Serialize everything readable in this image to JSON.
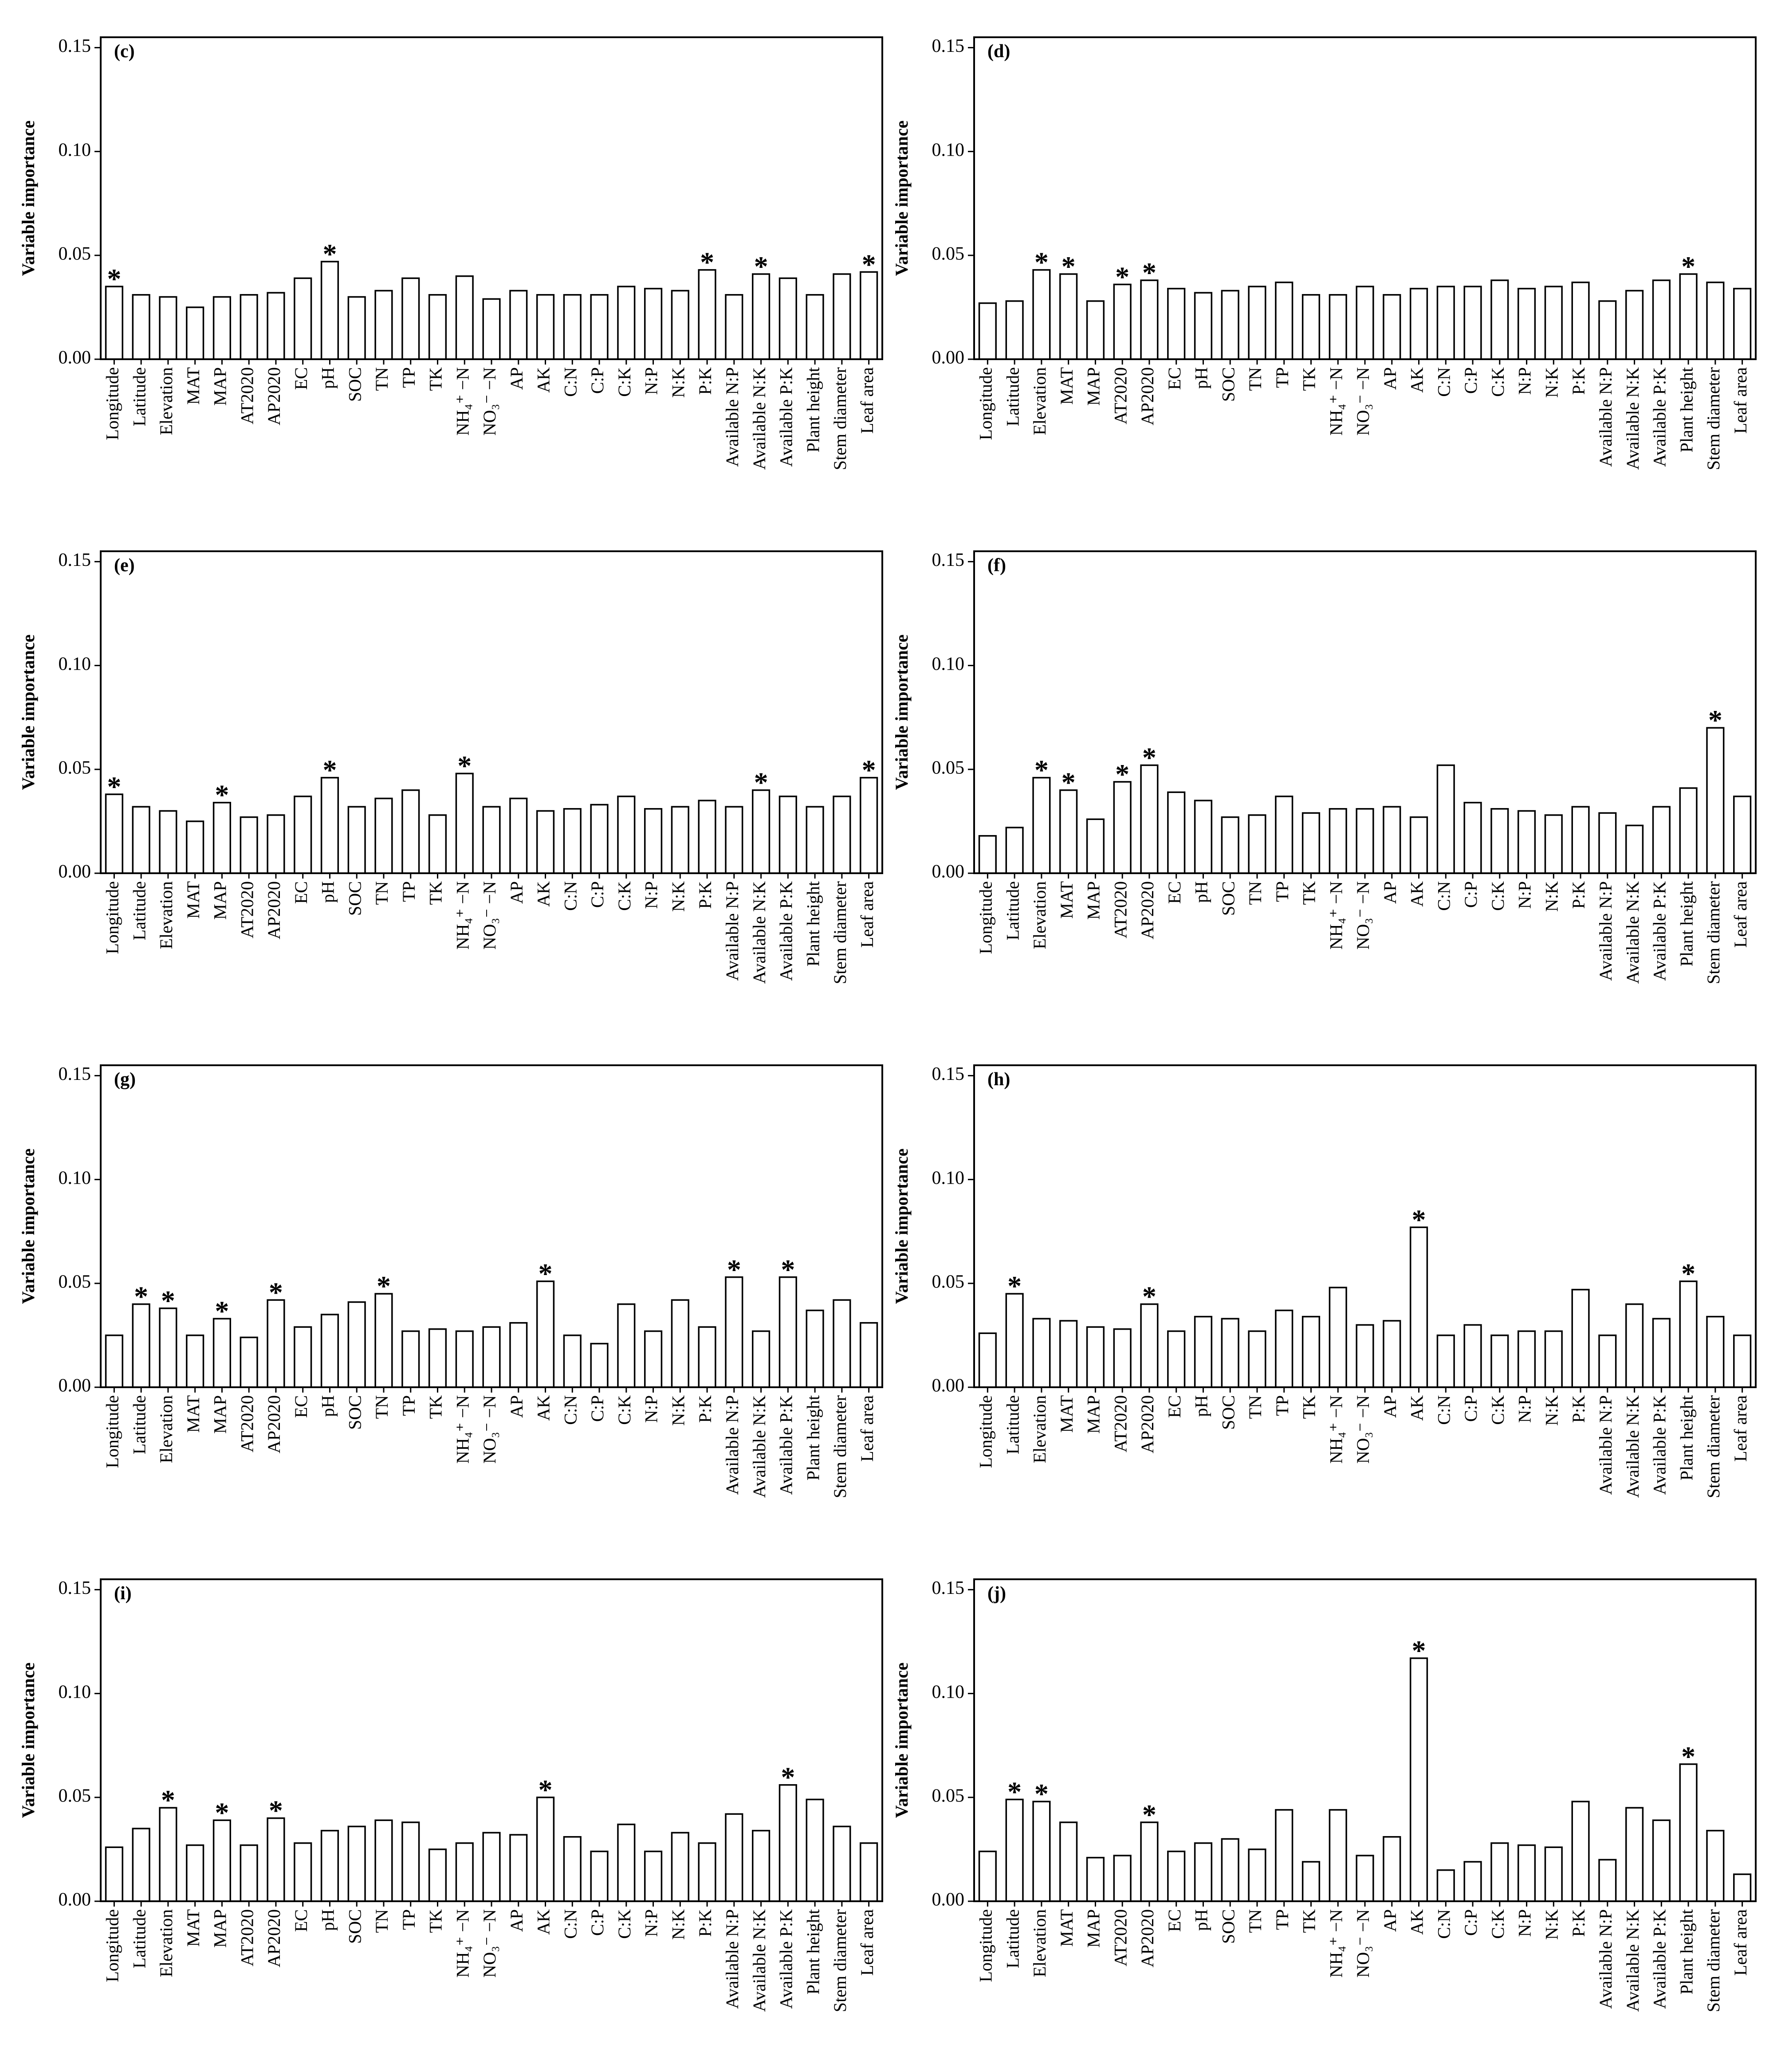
{
  "chart_data": [
    {
      "type": "bar",
      "title": "(c)",
      "y_label": "Variable importance",
      "categories": [
        "Longitude",
        "Latitude",
        "Elevation",
        "MAT",
        "MAP",
        "AT2020",
        "AP2020",
        "EC",
        "pH",
        "SOC",
        "TN",
        "TP",
        "TK",
        "NH₄⁺ −N",
        "NO₃⁻ −N",
        "AP",
        "AK",
        "C:N",
        "C:P",
        "C:K",
        "N:P",
        "N:K",
        "P:K",
        "Available N:P",
        "Available N:K",
        "Available P:K",
        "Plant height",
        "Stem diameter",
        "Leaf area"
      ],
      "values": [
        0.035,
        0.031,
        0.03,
        0.025,
        0.03,
        0.031,
        0.032,
        0.039,
        0.047,
        0.03,
        0.033,
        0.039,
        0.031,
        0.04,
        0.029,
        0.033,
        0.031,
        0.031,
        0.031,
        0.035,
        0.034,
        0.033,
        0.043,
        0.031,
        0.041,
        0.039,
        0.031,
        0.041,
        0.042
      ],
      "significance": [
        "*",
        null,
        null,
        null,
        null,
        null,
        null,
        null,
        "*",
        null,
        null,
        null,
        null,
        null,
        null,
        null,
        null,
        null,
        null,
        null,
        null,
        null,
        "*",
        null,
        "*",
        null,
        null,
        null,
        "*"
      ],
      "ylim": [
        0,
        0.155
      ],
      "yticks": [
        {
          "value": 0,
          "label": "0.00"
        },
        {
          "value": 0.05,
          "label": "0.05"
        },
        {
          "value": 0.1,
          "label": "0.10"
        },
        {
          "value": 0.15,
          "label": "0.15"
        }
      ],
      "color": "#ffffff"
    },
    {
      "type": "bar",
      "title": "(d)",
      "y_label": "Variable importance",
      "categories": [
        "Longitude",
        "Latitude",
        "Elevation",
        "MAT",
        "MAP",
        "AT2020",
        "AP2020",
        "EC",
        "pH",
        "SOC",
        "TN",
        "TP",
        "TK",
        "NH₄⁺ −N",
        "NO₃⁻ −N",
        "AP",
        "AK",
        "C:N",
        "C:P",
        "C:K",
        "N:P",
        "N:K",
        "P:K",
        "Available N:P",
        "Available N:K",
        "Available P:K",
        "Plant height",
        "Stem diameter",
        "Leaf area"
      ],
      "values": [
        0.027,
        0.028,
        0.043,
        0.041,
        0.028,
        0.036,
        0.038,
        0.034,
        0.032,
        0.033,
        0.035,
        0.037,
        0.031,
        0.031,
        0.035,
        0.031,
        0.034,
        0.035,
        0.035,
        0.038,
        0.034,
        0.035,
        0.037,
        0.028,
        0.033,
        0.038,
        0.041,
        0.037,
        0.034
      ],
      "significance": [
        null,
        null,
        "*",
        "*",
        null,
        "*",
        "*",
        null,
        null,
        null,
        null,
        null,
        null,
        null,
        null,
        null,
        null,
        null,
        null,
        null,
        null,
        null,
        null,
        null,
        null,
        null,
        "*",
        null,
        null
      ],
      "ylim": [
        0,
        0.155
      ],
      "yticks": [
        {
          "value": 0,
          "label": "0.00"
        },
        {
          "value": 0.05,
          "label": "0.05"
        },
        {
          "value": 0.1,
          "label": "0.10"
        },
        {
          "value": 0.15,
          "label": "0.15"
        }
      ],
      "color": "#ffffff"
    },
    {
      "type": "bar",
      "title": "(e)",
      "y_label": "Variable importance",
      "categories": [
        "Longitude",
        "Latitude",
        "Elevation",
        "MAT",
        "MAP",
        "AT2020",
        "AP2020",
        "EC",
        "pH",
        "SOC",
        "TN",
        "TP",
        "TK",
        "NH₄⁺ −N",
        "NO₃⁻ −N",
        "AP",
        "AK",
        "C:N",
        "C:P",
        "C:K",
        "N:P",
        "N:K",
        "P:K",
        "Available N:P",
        "Available N:K",
        "Available P:K",
        "Plant height",
        "Stem diameter",
        "Leaf area"
      ],
      "values": [
        0.038,
        0.032,
        0.03,
        0.025,
        0.034,
        0.027,
        0.028,
        0.037,
        0.046,
        0.032,
        0.036,
        0.04,
        0.028,
        0.048,
        0.032,
        0.036,
        0.03,
        0.031,
        0.033,
        0.037,
        0.031,
        0.032,
        0.035,
        0.032,
        0.04,
        0.037,
        0.032,
        0.037,
        0.046
      ],
      "significance": [
        "*",
        null,
        null,
        null,
        "*",
        null,
        null,
        null,
        "*",
        null,
        null,
        null,
        null,
        "*",
        null,
        null,
        null,
        null,
        null,
        null,
        null,
        null,
        null,
        null,
        "*",
        null,
        null,
        null,
        "*"
      ],
      "ylim": [
        0,
        0.155
      ],
      "yticks": [
        {
          "value": 0,
          "label": "0.00"
        },
        {
          "value": 0.05,
          "label": "0.05"
        },
        {
          "value": 0.1,
          "label": "0.10"
        },
        {
          "value": 0.15,
          "label": "0.15"
        }
      ],
      "color": "#ffffff"
    },
    {
      "type": "bar",
      "title": "(f)",
      "y_label": "Variable importance",
      "categories": [
        "Longitude",
        "Latitude",
        "Elevation",
        "MAT",
        "MAP",
        "AT2020",
        "AP2020",
        "EC",
        "pH",
        "SOC",
        "TN",
        "TP",
        "TK",
        "NH₄⁺ −N",
        "NO₃⁻ −N",
        "AP",
        "AK",
        "C:N",
        "C:P",
        "C:K",
        "N:P",
        "N:K",
        "P:K",
        "Available N:P",
        "Available N:K",
        "Available P:K",
        "Plant height",
        "Stem diameter",
        "Leaf area"
      ],
      "values": [
        0.018,
        0.022,
        0.046,
        0.04,
        0.026,
        0.044,
        0.052,
        0.039,
        0.035,
        0.027,
        0.028,
        0.037,
        0.029,
        0.031,
        0.031,
        0.032,
        0.027,
        0.052,
        0.034,
        0.031,
        0.03,
        0.028,
        0.032,
        0.029,
        0.023,
        0.032,
        0.041,
        0.07,
        0.037
      ],
      "significance": [
        null,
        null,
        "*",
        "*",
        null,
        "*",
        "*",
        null,
        null,
        null,
        null,
        null,
        null,
        null,
        null,
        null,
        null,
        null,
        null,
        null,
        null,
        null,
        null,
        null,
        null,
        null,
        null,
        "*",
        null
      ],
      "ylim": [
        0,
        0.155
      ],
      "yticks": [
        {
          "value": 0,
          "label": "0.00"
        },
        {
          "value": 0.05,
          "label": "0.05"
        },
        {
          "value": 0.1,
          "label": "0.10"
        },
        {
          "value": 0.15,
          "label": "0.15"
        }
      ],
      "color": "#ffffff"
    },
    {
      "type": "bar",
      "title": "(g)",
      "y_label": "Variable importance",
      "categories": [
        "Longitude",
        "Latitude",
        "Elevation",
        "MAT",
        "MAP",
        "AT2020",
        "AP2020",
        "EC",
        "pH",
        "SOC",
        "TN",
        "TP",
        "TK",
        "NH₄⁺ −N",
        "NO₃⁻ −N",
        "AP",
        "AK",
        "C:N",
        "C:P",
        "C:K",
        "N:P",
        "N:K",
        "P:K",
        "Available N:P",
        "Available N:K",
        "Available P:K",
        "Plant height",
        "Stem diameter",
        "Leaf area"
      ],
      "values": [
        0.025,
        0.04,
        0.038,
        0.025,
        0.033,
        0.024,
        0.042,
        0.029,
        0.035,
        0.041,
        0.045,
        0.027,
        0.028,
        0.027,
        0.029,
        0.031,
        0.051,
        0.025,
        0.021,
        0.04,
        0.027,
        0.042,
        0.029,
        0.053,
        0.027,
        0.053,
        0.037,
        0.042,
        0.031
      ],
      "significance": [
        null,
        "*",
        "*",
        null,
        "*",
        null,
        "*",
        null,
        null,
        null,
        "*",
        null,
        null,
        null,
        null,
        null,
        "*",
        null,
        null,
        null,
        null,
        null,
        null,
        "*",
        null,
        "*",
        null,
        null,
        null
      ],
      "ylim": [
        0,
        0.155
      ],
      "yticks": [
        {
          "value": 0,
          "label": "0.00"
        },
        {
          "value": 0.05,
          "label": "0.05"
        },
        {
          "value": 0.1,
          "label": "0.10"
        },
        {
          "value": 0.15,
          "label": "0.15"
        }
      ],
      "color": "#ffffff"
    },
    {
      "type": "bar",
      "title": "(h)",
      "y_label": "Variable importance",
      "categories": [
        "Longitude",
        "Latitude",
        "Elevation",
        "MAT",
        "MAP",
        "AT2020",
        "AP2020",
        "EC",
        "pH",
        "SOC",
        "TN",
        "TP",
        "TK",
        "NH₄⁺ −N",
        "NO₃⁻ −N",
        "AP",
        "AK",
        "C:N",
        "C:P",
        "C:K",
        "N:P",
        "N:K",
        "P:K",
        "Available N:P",
        "Available N:K",
        "Available P:K",
        "Plant height",
        "Stem diameter",
        "Leaf area"
      ],
      "values": [
        0.026,
        0.045,
        0.033,
        0.032,
        0.029,
        0.028,
        0.04,
        0.027,
        0.034,
        0.033,
        0.027,
        0.037,
        0.034,
        0.048,
        0.03,
        0.032,
        0.077,
        0.025,
        0.03,
        0.025,
        0.027,
        0.027,
        0.047,
        0.025,
        0.04,
        0.033,
        0.051,
        0.034,
        0.025
      ],
      "significance": [
        null,
        "*",
        null,
        null,
        null,
        null,
        "*",
        null,
        null,
        null,
        null,
        null,
        null,
        null,
        null,
        null,
        "*",
        null,
        null,
        null,
        null,
        null,
        null,
        null,
        null,
        null,
        "*",
        null,
        null
      ],
      "ylim": [
        0,
        0.155
      ],
      "yticks": [
        {
          "value": 0,
          "label": "0.00"
        },
        {
          "value": 0.05,
          "label": "0.05"
        },
        {
          "value": 0.1,
          "label": "0.10"
        },
        {
          "value": 0.15,
          "label": "0.15"
        }
      ],
      "color": "#ffffff"
    },
    {
      "type": "bar",
      "title": "(i)",
      "y_label": "Variable importance",
      "categories": [
        "Longitude",
        "Latitude",
        "Elevation",
        "MAT",
        "MAP",
        "AT2020",
        "AP2020",
        "EC",
        "pH",
        "SOC",
        "TN",
        "TP",
        "TK",
        "NH₄⁺ −N",
        "NO₃⁻ −N",
        "AP",
        "AK",
        "C:N",
        "C:P",
        "C:K",
        "N:P",
        "N:K",
        "P:K",
        "Available N:P",
        "Available N:K",
        "Available P:K",
        "Plant height",
        "Stem diameter",
        "Leaf area"
      ],
      "values": [
        0.026,
        0.035,
        0.045,
        0.027,
        0.039,
        0.027,
        0.04,
        0.028,
        0.034,
        0.036,
        0.039,
        0.038,
        0.025,
        0.028,
        0.033,
        0.032,
        0.05,
        0.031,
        0.024,
        0.037,
        0.024,
        0.033,
        0.028,
        0.042,
        0.034,
        0.056,
        0.049,
        0.036,
        0.028
      ],
      "significance": [
        null,
        null,
        "*",
        null,
        "*",
        null,
        "*",
        null,
        null,
        null,
        null,
        null,
        null,
        null,
        null,
        null,
        "*",
        null,
        null,
        null,
        null,
        null,
        null,
        null,
        null,
        "*",
        null,
        null,
        null
      ],
      "ylim": [
        0,
        0.155
      ],
      "yticks": [
        {
          "value": 0,
          "label": "0.00"
        },
        {
          "value": 0.05,
          "label": "0.05"
        },
        {
          "value": 0.1,
          "label": "0.10"
        },
        {
          "value": 0.15,
          "label": "0.15"
        }
      ],
      "color": "#ffffff"
    },
    {
      "type": "bar",
      "title": "(j)",
      "y_label": "Variable importance",
      "categories": [
        "Longitude",
        "Latitude",
        "Elevation",
        "MAT",
        "MAP",
        "AT2020",
        "AP2020",
        "EC",
        "pH",
        "SOC",
        "TN",
        "TP",
        "TK",
        "NH₄⁺ −N",
        "NO₃⁻ −N",
        "AP",
        "AK",
        "C:N",
        "C:P",
        "C:K",
        "N:P",
        "N:K",
        "P:K",
        "Available N:P",
        "Available N:K",
        "Available P:K",
        "Plant height",
        "Stem diameter",
        "Leaf area"
      ],
      "values": [
        0.024,
        0.049,
        0.048,
        0.038,
        0.021,
        0.022,
        0.038,
        0.024,
        0.028,
        0.03,
        0.025,
        0.044,
        0.019,
        0.044,
        0.022,
        0.031,
        0.117,
        0.015,
        0.019,
        0.028,
        0.027,
        0.026,
        0.048,
        0.02,
        0.045,
        0.039,
        0.066,
        0.034,
        0.013
      ],
      "significance": [
        null,
        "*",
        "*",
        null,
        null,
        null,
        "*",
        null,
        null,
        null,
        null,
        null,
        null,
        null,
        null,
        null,
        "*",
        null,
        null,
        null,
        null,
        null,
        null,
        null,
        null,
        null,
        "*",
        null,
        null
      ],
      "ylim": [
        0,
        0.155
      ],
      "yticks": [
        {
          "value": 0,
          "label": "0.00"
        },
        {
          "value": 0.05,
          "label": "0.05"
        },
        {
          "value": 0.1,
          "label": "0.10"
        },
        {
          "value": 0.15,
          "label": "0.15"
        }
      ],
      "color": "#ffffff"
    }
  ]
}
